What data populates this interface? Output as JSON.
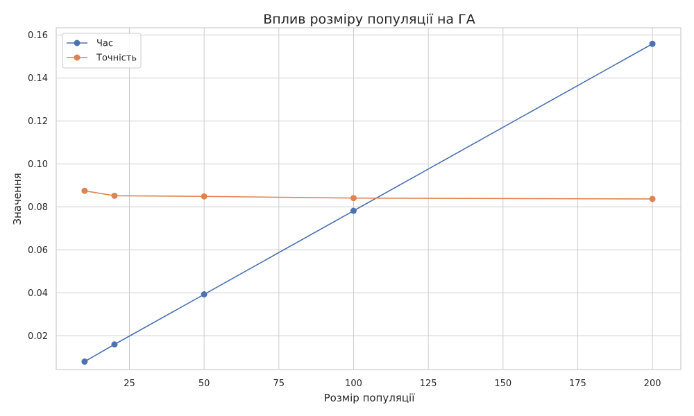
{
  "chart_data": {
    "type": "line",
    "title": "Вплив розміру популяції на ГА",
    "xlabel": "Розмір популяції",
    "ylabel": "Значення",
    "x": [
      10,
      20,
      50,
      100,
      200
    ],
    "xlim": [
      0.5,
      209.5
    ],
    "ylim": [
      0.0043,
      0.1634
    ],
    "xticks": [
      25,
      50,
      75,
      100,
      125,
      150,
      175,
      200
    ],
    "xtick_labels": [
      "25",
      "50",
      "75",
      "100",
      "125",
      "150",
      "175",
      "200"
    ],
    "yticks": [
      0.02,
      0.04,
      0.06,
      0.08,
      0.1,
      0.12,
      0.14,
      0.16
    ],
    "ytick_labels": [
      "0.02",
      "0.04",
      "0.06",
      "0.08",
      "0.10",
      "0.12",
      "0.14",
      "0.16"
    ],
    "grid": true,
    "legend_position": "top-left",
    "series": [
      {
        "name": "Час",
        "color": "#4c72b0",
        "values": [
          0.008,
          0.016,
          0.0393,
          0.0782,
          0.1559
        ]
      },
      {
        "name": "Точність",
        "color": "#dd8452",
        "values": [
          0.0875,
          0.0852,
          0.0849,
          0.0841,
          0.0837
        ]
      }
    ]
  }
}
